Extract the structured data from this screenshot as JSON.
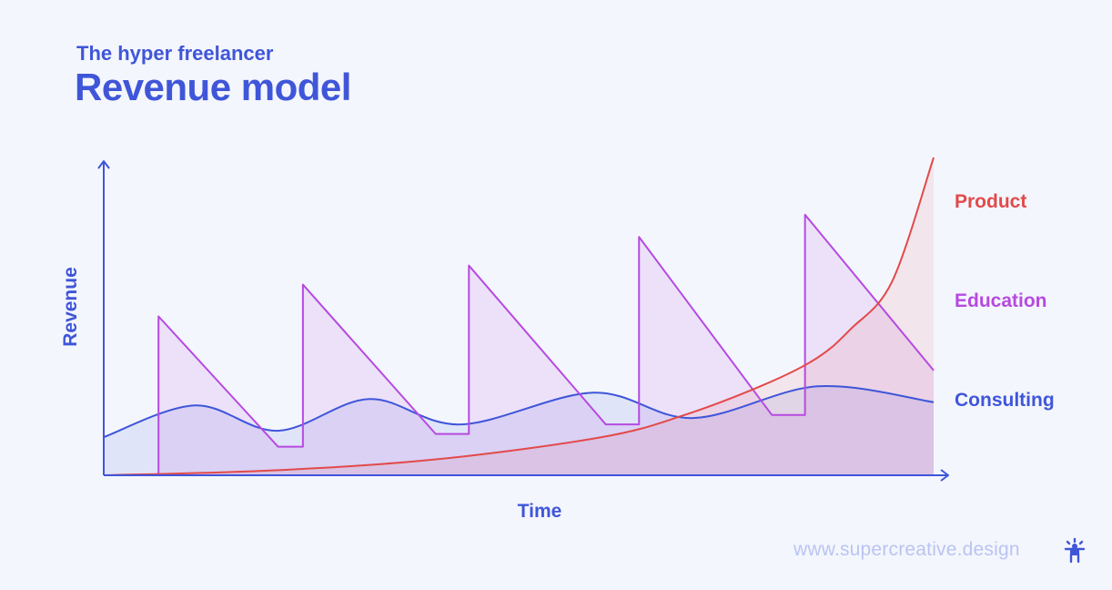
{
  "header": {
    "subtitle": "The hyper freelancer",
    "title": "Revenue model"
  },
  "footer": {
    "website": "www.supercreative.design",
    "logo_icon": "person-sparkle-icon"
  },
  "colors": {
    "axis": "#3f56d9",
    "product": "#e24a4a",
    "education": "#b64ae0",
    "consulting": "#3f56d9",
    "footer_text": "#b9c4f2"
  },
  "chart_data": {
    "type": "line",
    "title": "Revenue model",
    "subtitle": "The hyper freelancer",
    "xlabel": "Time",
    "ylabel": "Revenue",
    "x_ticks": "none",
    "y_ticks": "none",
    "grid": false,
    "xlim": [
      0,
      100
    ],
    "ylim": [
      0,
      100
    ],
    "legend_placement": "right",
    "series": [
      {
        "name": "Product",
        "color": "#e24a4a",
        "shape": "exponential growth",
        "points": [
          [
            0,
            0
          ],
          [
            20,
            1.5
          ],
          [
            40,
            5
          ],
          [
            60,
            12
          ],
          [
            70,
            19
          ],
          [
            80,
            29
          ],
          [
            86,
            37
          ],
          [
            90,
            46
          ],
          [
            95,
            61
          ],
          [
            100,
            100
          ]
        ]
      },
      {
        "name": "Education",
        "color": "#b64ae0",
        "shape": "sawtooth: sudden launch spike then linear decay, rising peaks",
        "points": [
          [
            6.6,
            0
          ],
          [
            6.6,
            50
          ],
          [
            21,
            9
          ],
          [
            24,
            9
          ],
          [
            24,
            60
          ],
          [
            40,
            13
          ],
          [
            44,
            13
          ],
          [
            44,
            66
          ],
          [
            60.5,
            16
          ],
          [
            64.5,
            16
          ],
          [
            64.5,
            75
          ],
          [
            80.5,
            19
          ],
          [
            84.5,
            19
          ],
          [
            84.5,
            82
          ],
          [
            100,
            33
          ]
        ]
      },
      {
        "name": "Consulting",
        "color": "#3f56d9",
        "shape": "gentle wave, slowly rising",
        "points": [
          [
            0,
            12
          ],
          [
            11,
            22
          ],
          [
            21,
            14
          ],
          [
            32,
            24
          ],
          [
            43,
            16
          ],
          [
            59,
            26
          ],
          [
            71,
            18
          ],
          [
            86,
            28
          ],
          [
            100,
            23
          ]
        ]
      }
    ],
    "legend": [
      "Product",
      "Education",
      "Consulting"
    ]
  }
}
